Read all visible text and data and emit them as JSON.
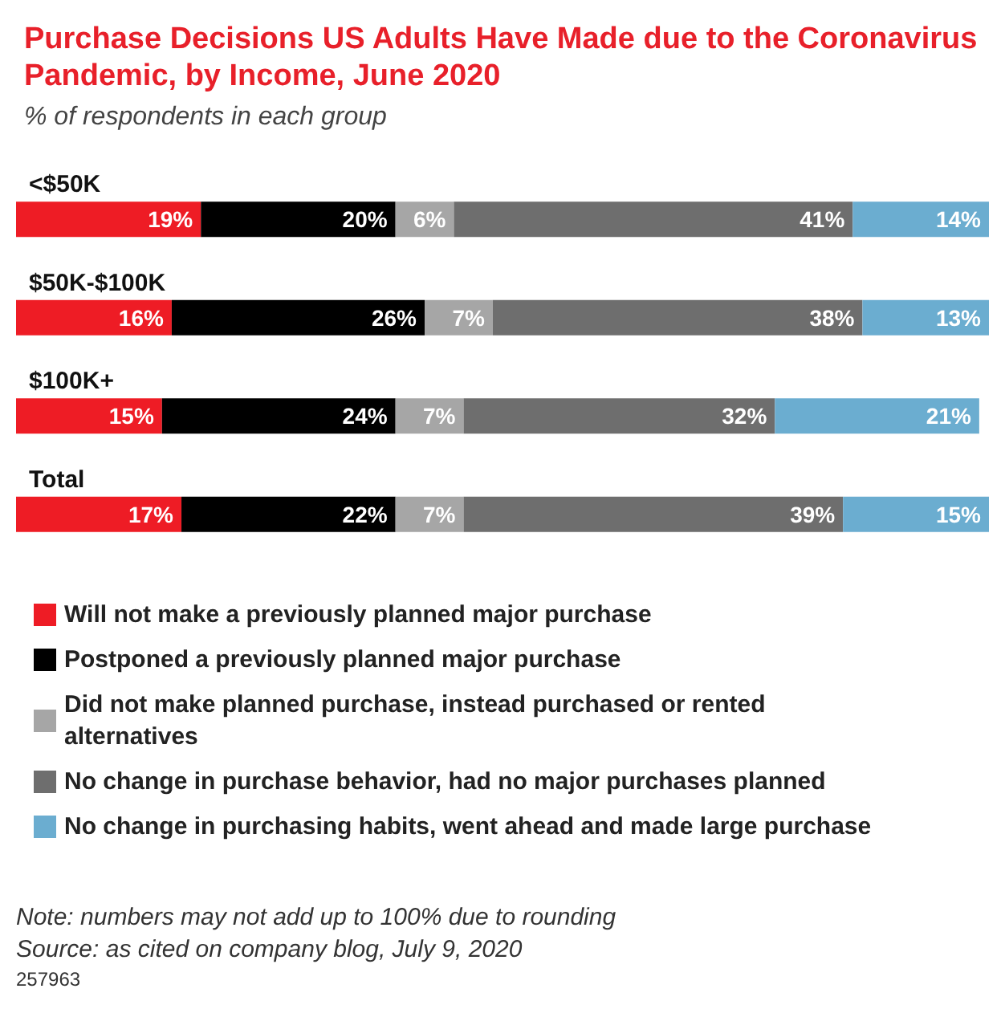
{
  "chart_data": {
    "type": "bar",
    "orientation": "horizontal",
    "stacked": true,
    "title": "Purchase Decisions US Adults Have Made due to the Coronavirus Pandemic, by Income, June 2020",
    "subtitle": "% of respondents in each group",
    "categories": [
      "<$50K",
      "$50K-$100K",
      "$100K+",
      "Total"
    ],
    "series": [
      {
        "name": "Will not make a previously planned major purchase",
        "color": "#ee1c25",
        "values": [
          19,
          16,
          15,
          17
        ],
        "value_labels": [
          "19%",
          "16%",
          "15%",
          "17%"
        ]
      },
      {
        "name": "Postponed a previously planned major purchase",
        "color": "#000000",
        "values": [
          20,
          26,
          24,
          22
        ],
        "value_labels": [
          "20%",
          "26%",
          "24%",
          "22%"
        ]
      },
      {
        "name": "Did not make planned purchase, instead purchased or rented alternatives",
        "color": "#a6a6a6",
        "values": [
          6,
          7,
          7,
          7
        ],
        "value_labels": [
          "6%",
          "7%",
          "7%",
          "7%"
        ]
      },
      {
        "name": "No change in purchase behavior, had no major purchases planned",
        "color": "#6e6e6e",
        "values": [
          41,
          38,
          32,
          39
        ],
        "value_labels": [
          "41%",
          "38%",
          "32%",
          "39%"
        ]
      },
      {
        "name": "No change in purchasing habits, went ahead and made large purchase",
        "color": "#6badd0",
        "values": [
          14,
          13,
          21,
          15
        ],
        "value_labels": [
          "14%",
          "13%",
          "21%",
          "15%"
        ]
      }
    ],
    "xlim": [
      0,
      100
    ],
    "tick_labels": false,
    "legend": "bottom",
    "annotations": [
      "Note: numbers may not add up to 100% due to rounding",
      "Source: as cited on company blog, July 9, 2020",
      "257963"
    ]
  }
}
